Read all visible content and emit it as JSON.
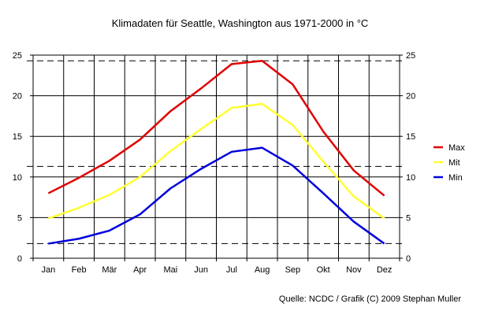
{
  "chart_data": {
    "type": "line",
    "title": "Klimadaten für Seattle, Washington aus 1971-2000 in °C",
    "categories": [
      "Jan",
      "Feb",
      "Mär",
      "Apr",
      "Mai",
      "Jun",
      "Jul",
      "Aug",
      "Sep",
      "Okt",
      "Nov",
      "Dez"
    ],
    "ylim": [
      0,
      25
    ],
    "yticks": [
      0,
      5,
      10,
      15,
      20,
      25
    ],
    "grid": true,
    "legend_position": "right",
    "reference_lines": [
      24.3,
      11.3,
      1.8
    ],
    "series": [
      {
        "name": "Max",
        "color": "#e00000",
        "values": [
          8.0,
          9.9,
          12.0,
          14.6,
          18.1,
          20.9,
          23.9,
          24.3,
          21.4,
          15.6,
          10.8,
          7.7
        ]
      },
      {
        "name": "Mit",
        "color": "#ffff33",
        "values": [
          4.9,
          6.2,
          7.8,
          10.0,
          13.2,
          15.9,
          18.5,
          19.0,
          16.4,
          11.9,
          7.6,
          4.9
        ]
      },
      {
        "name": "Min",
        "color": "#0000dd",
        "values": [
          1.8,
          2.4,
          3.4,
          5.4,
          8.6,
          11.0,
          13.1,
          13.6,
          11.4,
          8.0,
          4.5,
          1.8
        ]
      }
    ],
    "source": "Quelle: NCDC / Grafik (C) 2009 Stephan Muller"
  }
}
